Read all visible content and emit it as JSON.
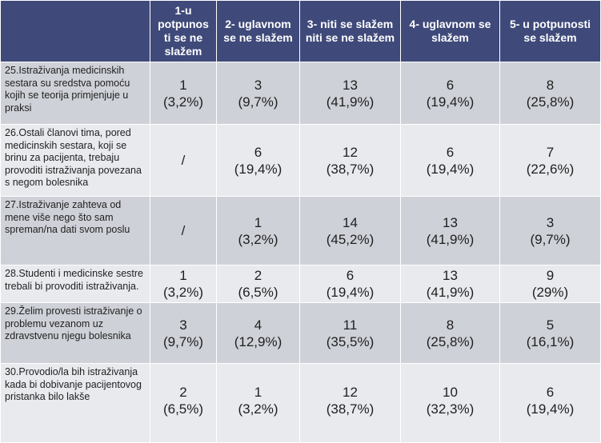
{
  "header": {
    "corner": "",
    "col1": "1-u\npotpunos\nti se ne\nslažem",
    "col2": "2- uglavnom\nse ne slažem",
    "col3": "3- niti se slažem\nniti se ne slažem",
    "col4": "4- uglavnom se\nslažem",
    "col5": "5- u potpunosti\nse slažem"
  },
  "rows": [
    {
      "question": "25.Istraživanja medicinskih sestara su sredstva pomoću kojih se teorija primjenjuje u praksi",
      "v1": "1\n(3,2%)",
      "v2": "3\n(9,7%)",
      "v3": "13\n(41,9%)",
      "v4": "6\n(19,4%)",
      "v5": "8\n(25,8%)"
    },
    {
      "question": "26.Ostali članovi tima, pored medicinskih sestara, koji se brinu za pacijenta, trebaju provoditi istraživanja povezana s negom bolesnika",
      "v1": "/",
      "v2": "6\n(19,4%)",
      "v3": "12\n(38,7%)",
      "v4": "6\n(19,4%)",
      "v5": "7\n(22,6%)"
    },
    {
      "question": "27.Istraživanje zahteva od mene više nego što sam spreman/na dati svom poslu",
      "v1": "/",
      "v2": "1\n(3,2%)",
      "v3": "14\n(45,2%)",
      "v4": "13\n(41,9%)",
      "v5": "3\n(9,7%)"
    },
    {
      "question": "28.Studenti i medicinske sestre trebali bi provoditi istraživanja.",
      "v1": "1\n(3,2%)",
      "v2": "2\n(6,5%)",
      "v3": "6\n(19,4%)",
      "v4": "13\n(41,9%)",
      "v5": "9\n(29%)"
    },
    {
      "question": "29.Želim provesti istraživanje o problemu vezanom uz zdravstvenu njegu bolesnika",
      "v1": "3\n(9,7%)",
      "v2": "4\n(12,9%)",
      "v3": "11\n(35,5%)",
      "v4": "8\n(25,8%)",
      "v5": "5\n(16,1%)"
    },
    {
      "question": "30.Provodio/la bih istraživanja kada bi dobivanje pacijentovog pristanka bilo lakše",
      "v1": "2\n(6,5%)",
      "v2": "1\n(3,2%)",
      "v3": "12\n(38,7%)",
      "v4": "10\n(32,3%)",
      "v5": "6\n(19,4%)"
    }
  ],
  "colors": {
    "header_bg": "#3f4a7a",
    "row_dark": "#cfd1d8",
    "row_light": "#e9eaee"
  }
}
